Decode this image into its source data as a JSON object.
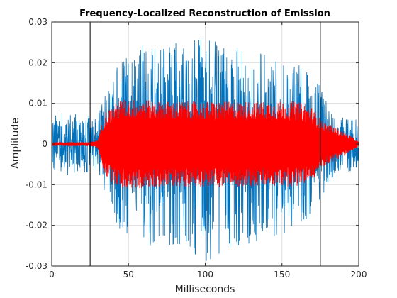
{
  "chart_data": {
    "type": "line",
    "title": "Frequency-Localized Reconstruction of Emission",
    "xlabel": "Milliseconds",
    "ylabel": "Amplitude",
    "xlim": [
      0,
      200
    ],
    "ylim": [
      -0.03,
      0.03
    ],
    "grid": true,
    "xticks": [
      0,
      50,
      100,
      150,
      200
    ],
    "xtick_labels": [
      "0",
      "50",
      "100",
      "150",
      "200"
    ],
    "yticks": [
      -0.03,
      -0.02,
      -0.01,
      0,
      0.01,
      0.02,
      0.03
    ],
    "ytick_labels": [
      "-0.03",
      "-0.02",
      "-0.01",
      "0",
      "0.01",
      "0.02",
      "0.03"
    ],
    "vertical_lines": [
      25,
      175
    ],
    "series": [
      {
        "color": "#0072BD",
        "description_envelope": {
          "x": [
            0,
            10,
            25,
            30,
            35,
            45,
            60,
            80,
            100,
            120,
            140,
            160,
            170,
            175,
            185,
            195,
            200
          ],
          "y_max": [
            0.007,
            0.008,
            0.007,
            0.007,
            0.013,
            0.022,
            0.025,
            0.026,
            0.026,
            0.025,
            0.022,
            0.02,
            0.017,
            0.014,
            0.007,
            0.006,
            0.006
          ],
          "y_min": [
            -0.007,
            -0.008,
            -0.007,
            -0.007,
            -0.013,
            -0.022,
            -0.025,
            -0.026,
            -0.029,
            -0.026,
            -0.024,
            -0.021,
            -0.018,
            -0.014,
            -0.007,
            -0.007,
            -0.007
          ]
        }
      },
      {
        "color": "#FF0000",
        "description_envelope": {
          "x": [
            0,
            25,
            30,
            32,
            35,
            45,
            60,
            80,
            100,
            120,
            140,
            160,
            170,
            175,
            185,
            195,
            200
          ],
          "y_max": [
            0.0005,
            0.0005,
            0.001,
            0.004,
            0.008,
            0.011,
            0.011,
            0.0105,
            0.0105,
            0.0105,
            0.0105,
            0.0105,
            0.009,
            0.006,
            0.004,
            0.002,
            0.0005
          ],
          "y_min": [
            -0.0005,
            -0.0005,
            -0.001,
            -0.004,
            -0.008,
            -0.011,
            -0.011,
            -0.0105,
            -0.0105,
            -0.0105,
            -0.0105,
            -0.0105,
            -0.009,
            -0.006,
            -0.004,
            -0.002,
            -0.0005
          ]
        }
      }
    ]
  }
}
